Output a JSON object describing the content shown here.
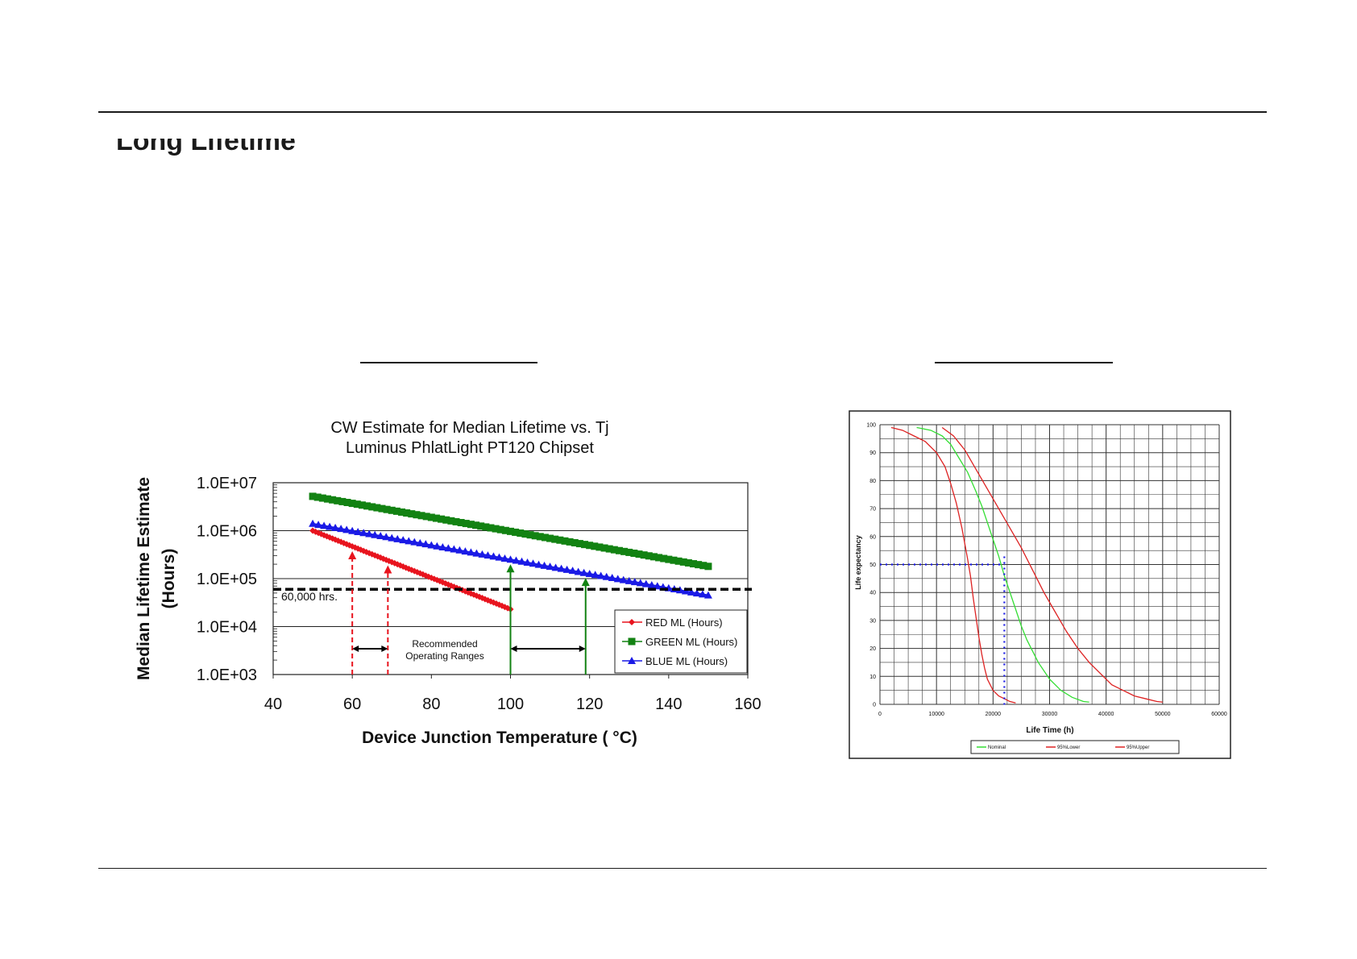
{
  "page": {
    "heading": "Long Lifetime"
  },
  "chart_data": [
    {
      "type": "line",
      "title": "CW Estimate for Median Lifetime vs. Tj",
      "subtitle": "Luminus PhlatLight PT120 Chipset",
      "xlabel": "Device Junction Temperature ( °C)",
      "ylabel": "Median Lifetime Estimate",
      "ylabel2": "(Hours)",
      "xlim": [
        40,
        160
      ],
      "ylim": [
        1000,
        10000000
      ],
      "yscale": "log",
      "x_ticks": [
        "40",
        "60",
        "80",
        "100",
        "120",
        "140",
        "160"
      ],
      "y_ticks": [
        "1.0E+03",
        "1.0E+04",
        "1.0E+05",
        "1.0E+06",
        "1.0E+07"
      ],
      "grid": "horizontal",
      "legend": "bottom-right",
      "series": [
        {
          "name": "RED ML (Hours)",
          "color": "#e8141e",
          "marker": "diamond",
          "x_range": [
            50,
            100
          ],
          "y_range": [
            1000000,
            23000
          ]
        },
        {
          "name": "GREEN ML (Hours)",
          "color": "#128212",
          "marker": "square",
          "x_range": [
            50,
            150
          ],
          "y_range": [
            5200000,
            180000
          ]
        },
        {
          "name": "BLUE ML (Hours)",
          "color": "#1a1ae6",
          "marker": "triangle",
          "x_range": [
            50,
            150
          ],
          "y_range": [
            1400000,
            45000
          ]
        }
      ],
      "reference_line": {
        "label": "60,000 hrs.",
        "value": 60000
      },
      "ranges": [
        {
          "label": "Recommended\nOperating Ranges",
          "color": "#e8141e",
          "x": [
            60,
            69
          ]
        },
        {
          "color": "#128212",
          "x": [
            100,
            119
          ]
        }
      ],
      "range_label_line1": "Recommended",
      "range_label_line2": "Operating Ranges"
    },
    {
      "type": "line",
      "xlabel": "Life Time (h)",
      "ylabel": "Life expectancy",
      "xlim": [
        0,
        60000
      ],
      "ylim": [
        0,
        100
      ],
      "x_ticks": [
        "0",
        "10000",
        "20000",
        "30000",
        "40000",
        "50000",
        "60000"
      ],
      "y_ticks": [
        "0",
        "10",
        "20",
        "30",
        "40",
        "50",
        "60",
        "70",
        "80",
        "90",
        "100"
      ],
      "grid": true,
      "legend": "bottom",
      "series": [
        {
          "name": "Nominal",
          "color": "#33dd33",
          "x": [
            6500,
            9000,
            11000,
            12500,
            14000,
            15500,
            17000,
            18000,
            19000,
            20000,
            21000,
            22000,
            23000,
            24000,
            25000,
            26000,
            27000,
            28000,
            30000,
            32000,
            34000,
            36000,
            37000
          ],
          "y": [
            99,
            98,
            96,
            93,
            88,
            83,
            76,
            71,
            65,
            59,
            53,
            46,
            40,
            34,
            28,
            23,
            19,
            15,
            9,
            5,
            2.5,
            1,
            0.8
          ]
        },
        {
          "name": "95%Lower",
          "color": "#dd2222",
          "x": [
            2000,
            4000,
            6000,
            8000,
            10000,
            11500,
            12500,
            13500,
            14500,
            15500,
            16000,
            16500,
            17000,
            17500,
            18000,
            18500,
            19000,
            20000,
            21000,
            22000,
            23000,
            24000
          ],
          "y": [
            99,
            98,
            96,
            94,
            90,
            85,
            79,
            72,
            63,
            52,
            46,
            38,
            31,
            24,
            18,
            13,
            9,
            5,
            3,
            2,
            1,
            0.5
          ]
        },
        {
          "name": "95%Upper",
          "color": "#dd2222",
          "x": [
            11000,
            13000,
            15000,
            17000,
            19000,
            21000,
            23000,
            25000,
            27000,
            29000,
            31000,
            33000,
            35000,
            37000,
            39000,
            41000,
            43000,
            45000,
            47000,
            49000,
            50000
          ],
          "y": [
            99,
            96,
            91,
            84,
            77,
            70,
            63,
            56,
            48,
            40,
            33,
            26,
            20,
            15,
            11,
            7,
            5,
            3,
            2,
            1,
            0.8
          ]
        }
      ],
      "reference": {
        "x": 22000,
        "y": 50,
        "color": "#1a1ae6"
      }
    }
  ]
}
